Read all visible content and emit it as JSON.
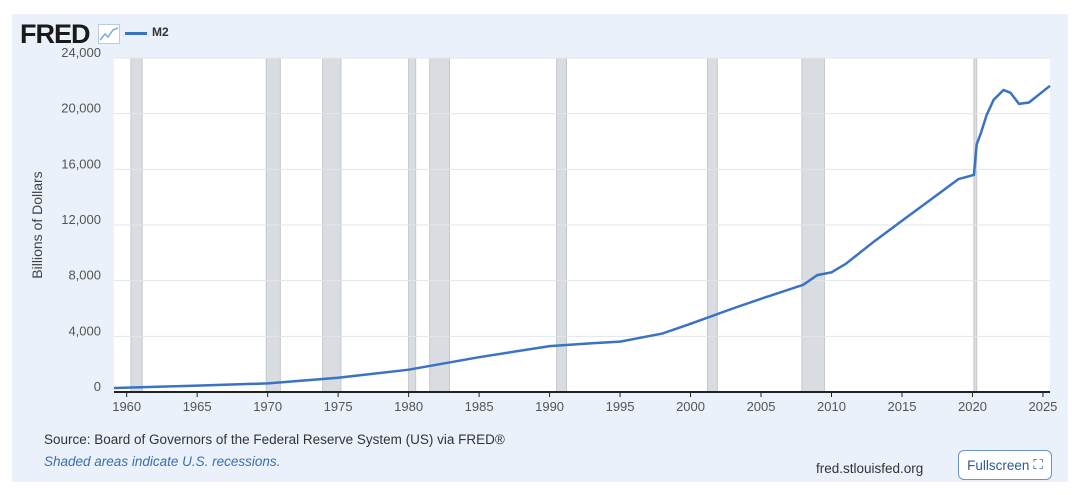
{
  "header": {
    "logo": "FRED",
    "logo_icon": "chart-line-icon"
  },
  "chart_data": {
    "type": "line",
    "title": "",
    "xlabel": "",
    "ylabel": "Billions of Dollars",
    "legend": [
      {
        "name": "M2",
        "color": "#3a72c4"
      }
    ],
    "legend_placement": "top-left",
    "xlim": [
      1959.1,
      2025.5
    ],
    "ylim": [
      0,
      24000
    ],
    "x_ticks": [
      1960,
      1965,
      1970,
      1975,
      1980,
      1985,
      1990,
      1995,
      2000,
      2005,
      2010,
      2015,
      2020,
      2025
    ],
    "y_ticks": [
      0,
      4000,
      8000,
      12000,
      16000,
      20000,
      24000
    ],
    "y_tick_labels": [
      "0",
      "4,000",
      "8,000",
      "12,000",
      "16,000",
      "20,000",
      "24,000"
    ],
    "series": [
      {
        "name": "M2",
        "x": [
          1959.1,
          1965,
          1970,
          1975,
          1980,
          1985,
          1990,
          1993,
          1995,
          1998,
          2000,
          2003,
          2005,
          2008,
          2009,
          2010,
          2011,
          2013,
          2015,
          2017,
          2019,
          2020.1,
          2020.3,
          2020.6,
          2021,
          2021.5,
          2022.2,
          2022.7,
          2023.3,
          2024,
          2025.5
        ],
        "y": [
          290,
          460,
          620,
          1020,
          1600,
          2500,
          3300,
          3500,
          3620,
          4200,
          4900,
          6000,
          6700,
          7700,
          8400,
          8600,
          9200,
          10800,
          12300,
          13800,
          15300,
          15600,
          17800,
          18600,
          19900,
          21000,
          21700,
          21500,
          20700,
          20800,
          22000
        ]
      }
    ],
    "recessions": [
      [
        1960.3,
        1961.1
      ],
      [
        1969.9,
        1970.9
      ],
      [
        1973.9,
        1975.2
      ],
      [
        1980.0,
        1980.5
      ],
      [
        1981.5,
        1982.9
      ],
      [
        1990.5,
        1991.2
      ],
      [
        2001.2,
        2001.9
      ],
      [
        2007.9,
        2009.5
      ],
      [
        2020.1,
        2020.3
      ]
    ],
    "grid": true
  },
  "footer": {
    "source": "Source: Board of Governors of the Federal Reserve System (US) via FRED®",
    "note": "Shaded areas indicate U.S. recessions.",
    "site": "fred.stlouisfed.org",
    "fullscreen": "Fullscreen",
    "fullscreen_icon": "expand-icon"
  }
}
